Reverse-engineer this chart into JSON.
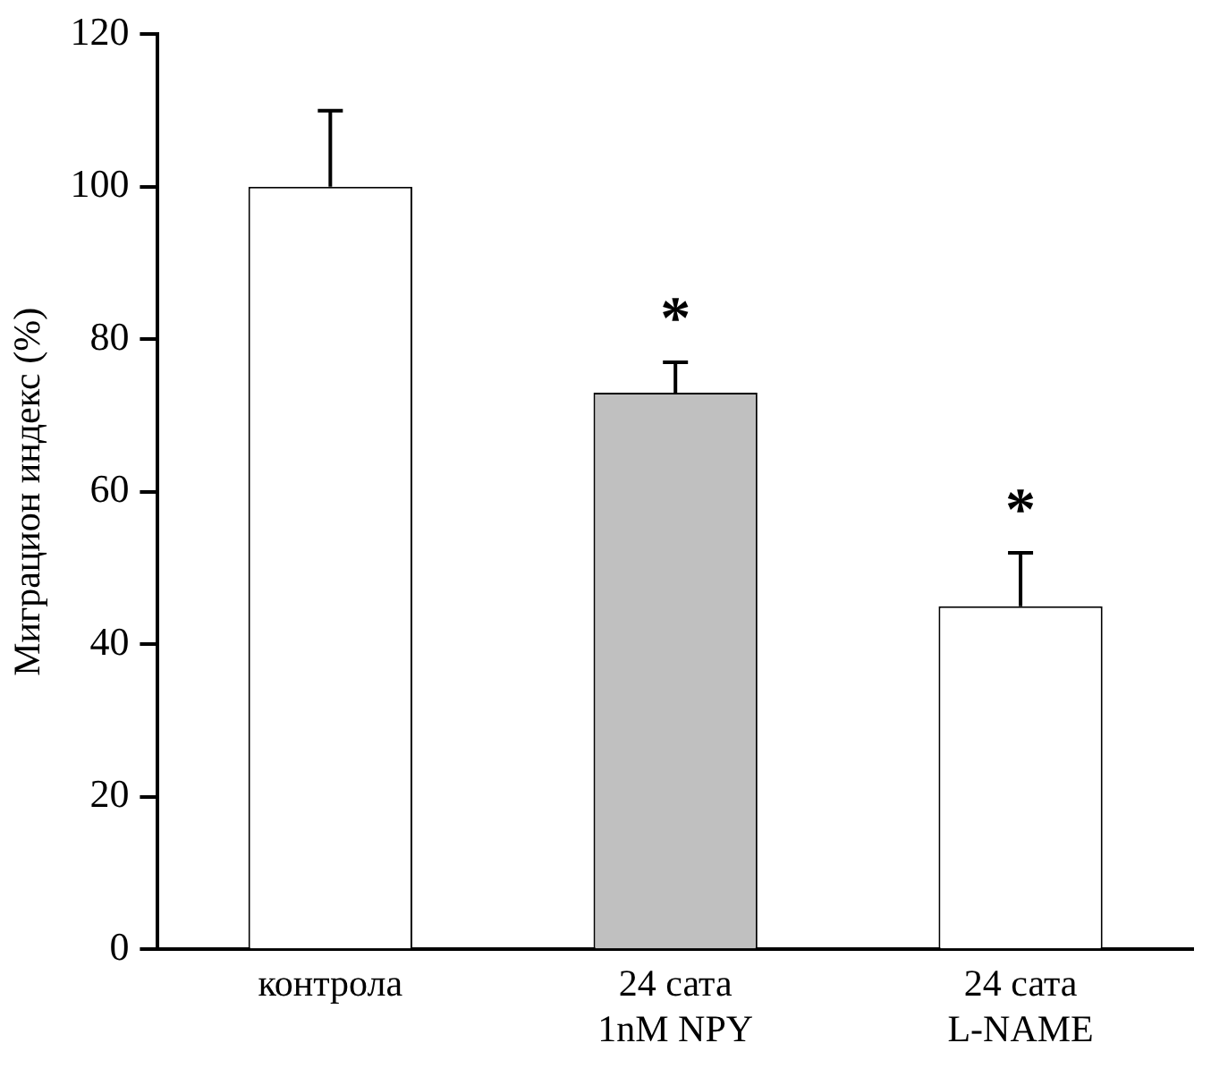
{
  "chart_data": {
    "type": "bar",
    "ylabel": "Миграцион индекс (%)",
    "categories": [
      "контрола",
      "24 сата\n1nM NPY",
      "24 сата\nL-NAME"
    ],
    "values": [
      100,
      73,
      45
    ],
    "colors": [
      "#ffffff",
      "#c0c0c0",
      "#ffffff"
    ],
    "errors": [
      [
        100,
        110
      ],
      [
        73,
        77
      ],
      [
        45,
        52
      ]
    ],
    "ylim": [
      0,
      120
    ],
    "yticks": [
      0,
      20,
      40,
      60,
      80,
      100,
      120
    ],
    "grid": false,
    "legend": false,
    "annotations": [
      "*",
      "*"
    ]
  }
}
